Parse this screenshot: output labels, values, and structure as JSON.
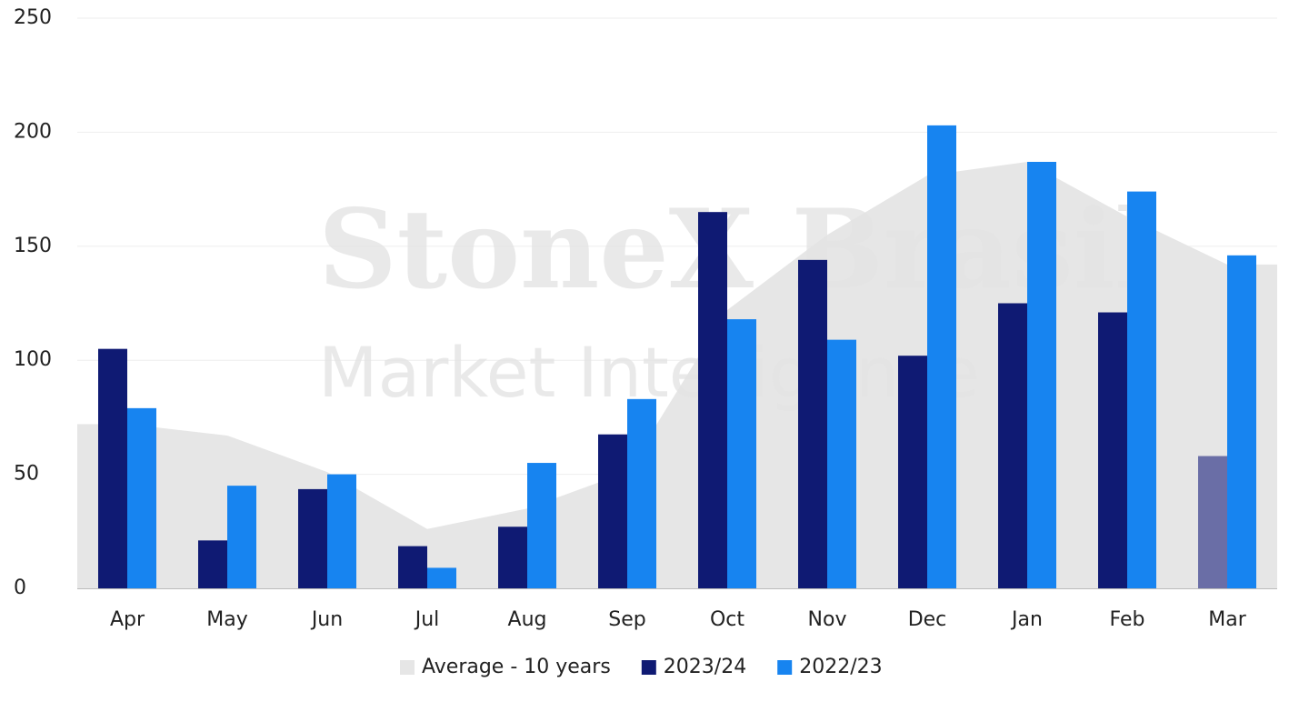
{
  "chart_data": {
    "type": "bar",
    "watermark": [
      "StoneX Brasil",
      "Market Intelligence"
    ],
    "categories": [
      "Apr",
      "May",
      "Jun",
      "Jul",
      "Aug",
      "Sep",
      "Oct",
      "Nov",
      "Dec",
      "Jan",
      "Feb",
      "Mar"
    ],
    "series": [
      {
        "name": "Average - 10 years",
        "type": "area",
        "color": "#e6e6e6",
        "values": [
          72,
          67,
          51,
          26,
          35,
          51,
          122,
          155,
          181,
          187,
          163,
          142
        ]
      },
      {
        "name": "2023/24",
        "color": "#0f1a73",
        "colors": [
          "#0f1a73",
          "#0f1a73",
          "#0f1a73",
          "#0f1a73",
          "#0f1a73",
          "#0f1a73",
          "#0f1a73",
          "#0f1a73",
          "#0f1a73",
          "#0f1a73",
          "#0f1a73",
          "#6a6ea6"
        ],
        "values": [
          105,
          21,
          43.5,
          18.5,
          27,
          67.5,
          165,
          144,
          102,
          125,
          121,
          58
        ]
      },
      {
        "name": "2022/23",
        "color": "#1784f0",
        "values": [
          79,
          45,
          50,
          9,
          55,
          83,
          118,
          109,
          203,
          187,
          174,
          146
        ]
      }
    ],
    "ylim": [
      0,
      250
    ],
    "yticks": [
      0,
      50,
      100,
      150,
      200,
      250
    ],
    "grid": true,
    "legend": "bottom"
  }
}
